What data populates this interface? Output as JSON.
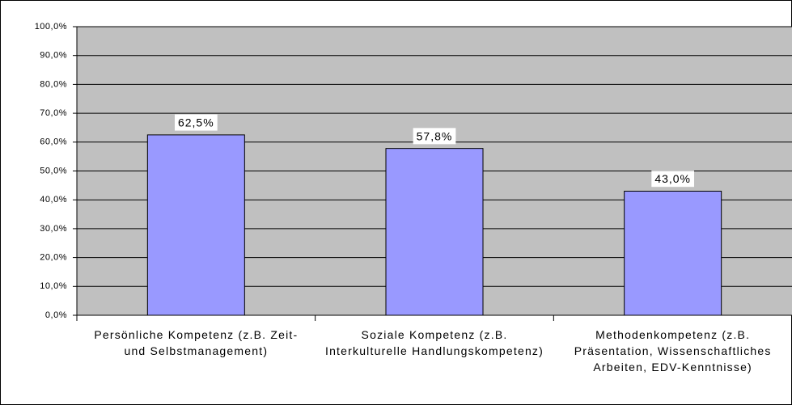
{
  "chart_data": {
    "type": "bar",
    "categories": [
      "Persönliche Kompetenz (z.B. Zeit- und Selbstmanagement)",
      "Soziale Kompetenz (z.B. Interkulturelle Handlungskompetenz)",
      "Methodenkompetenz (z.B. Präsentation, Wissenschaftliches Arbeiten, EDV-Kenntnisse)"
    ],
    "values": [
      62.5,
      57.8,
      43.0
    ],
    "value_labels": [
      "62,5%",
      "57,8%",
      "43,0%"
    ],
    "color": "#9999ff",
    "ylim": [
      0,
      100
    ],
    "yticks": [
      {
        "value": 0,
        "label": "0,0%"
      },
      {
        "value": 10,
        "label": "10,0%"
      },
      {
        "value": 20,
        "label": "20,0%"
      },
      {
        "value": 30,
        "label": "30,0%"
      },
      {
        "value": 40,
        "label": "40,0%"
      },
      {
        "value": 50,
        "label": "50,0%"
      },
      {
        "value": 60,
        "label": "60,0%"
      },
      {
        "value": 70,
        "label": "70,0%"
      },
      {
        "value": 80,
        "label": "80,0%"
      },
      {
        "value": 90,
        "label": "90,0%"
      },
      {
        "value": 100,
        "label": "100,0%"
      }
    ],
    "grid": true
  }
}
